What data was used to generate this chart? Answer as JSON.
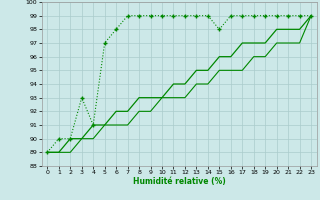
{
  "xlabel": "Humidité relative (%)",
  "bg_color": "#cce8e8",
  "grid_color": "#aacccc",
  "line_color": "#008800",
  "xmin": 0,
  "xmax": 23,
  "ymin": 88,
  "ymax": 100,
  "yticks": [
    88,
    89,
    90,
    91,
    92,
    93,
    94,
    95,
    96,
    97,
    98,
    99,
    100
  ],
  "xticks": [
    0,
    1,
    2,
    3,
    4,
    5,
    6,
    7,
    8,
    9,
    10,
    11,
    12,
    13,
    14,
    15,
    16,
    17,
    18,
    19,
    20,
    21,
    22,
    23
  ],
  "line1_x": [
    0,
    1,
    2,
    3,
    4,
    5,
    6,
    7,
    8,
    9,
    10,
    11,
    12,
    13,
    14,
    15,
    16,
    17,
    18,
    19,
    20,
    21,
    22,
    23
  ],
  "line1_y": [
    89,
    90,
    90,
    93,
    91,
    97,
    98,
    99,
    99,
    99,
    99,
    99,
    99,
    99,
    99,
    98,
    99,
    99,
    99,
    99,
    99,
    99,
    99,
    99
  ],
  "line2_x": [
    0,
    1,
    2,
    3,
    4,
    5,
    6,
    7,
    8,
    9,
    10,
    11,
    12,
    13,
    14,
    15,
    16,
    17,
    18,
    19,
    20,
    21,
    22,
    23
  ],
  "line2_y": [
    89,
    89,
    90,
    90,
    91,
    91,
    92,
    92,
    93,
    93,
    93,
    94,
    94,
    95,
    95,
    96,
    96,
    97,
    97,
    97,
    98,
    98,
    98,
    99
  ],
  "line3_x": [
    0,
    1,
    2,
    3,
    4,
    5,
    6,
    7,
    8,
    9,
    10,
    11,
    12,
    13,
    14,
    15,
    16,
    17,
    18,
    19,
    20,
    21,
    22,
    23
  ],
  "line3_y": [
    89,
    89,
    89,
    90,
    90,
    91,
    91,
    91,
    92,
    92,
    93,
    93,
    93,
    94,
    94,
    95,
    95,
    95,
    96,
    96,
    97,
    97,
    97,
    99
  ]
}
